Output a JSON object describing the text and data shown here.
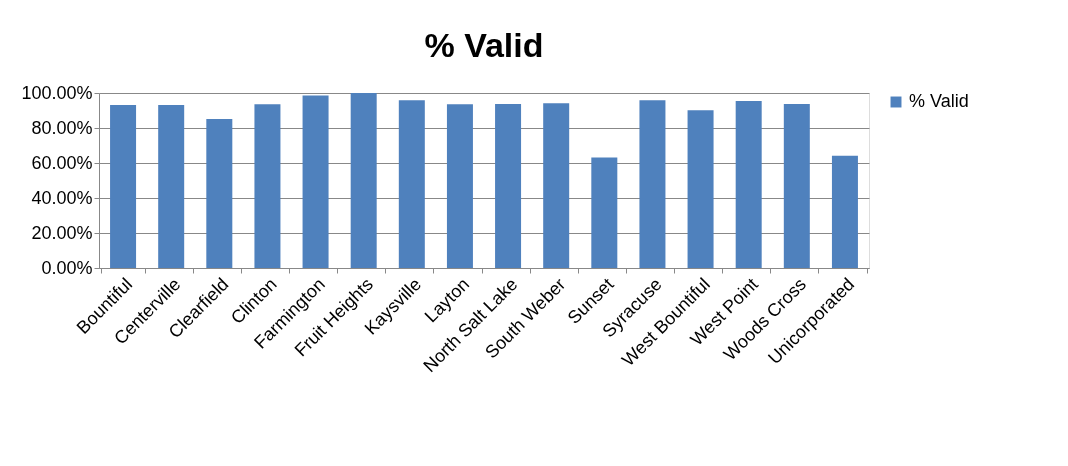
{
  "chart_data": {
    "type": "bar",
    "title": "% Valid",
    "categories": [
      "Bountiful",
      "Centerville",
      "Clearfield",
      "Clinton",
      "Farmington",
      "Fruit Heights",
      "Kaysville",
      "Layton",
      "North Salt Lake",
      "South Weber",
      "Sunset",
      "Syracuse",
      "West Bountiful",
      "West Point",
      "Woods Cross",
      "Unicorporated"
    ],
    "series": [
      {
        "name": "% Valid",
        "color": "#4f81bd",
        "values": [
          93.2,
          93.2,
          85.1,
          93.6,
          98.6,
          100,
          95.8,
          93.6,
          93.7,
          94.1,
          63.2,
          95.8,
          90.1,
          95.4,
          93.7,
          64.1
        ]
      }
    ],
    "ylim": [
      0,
      100
    ],
    "yticks": [
      {
        "value": 0,
        "label": "0.00%"
      },
      {
        "value": 20,
        "label": "20.00%"
      },
      {
        "value": 40,
        "label": "40.00%"
      },
      {
        "value": 60,
        "label": "60.00%"
      },
      {
        "value": 80,
        "label": "80.00%"
      },
      {
        "value": 100,
        "label": "100.00%"
      }
    ],
    "grid": "y",
    "legend": "right"
  }
}
